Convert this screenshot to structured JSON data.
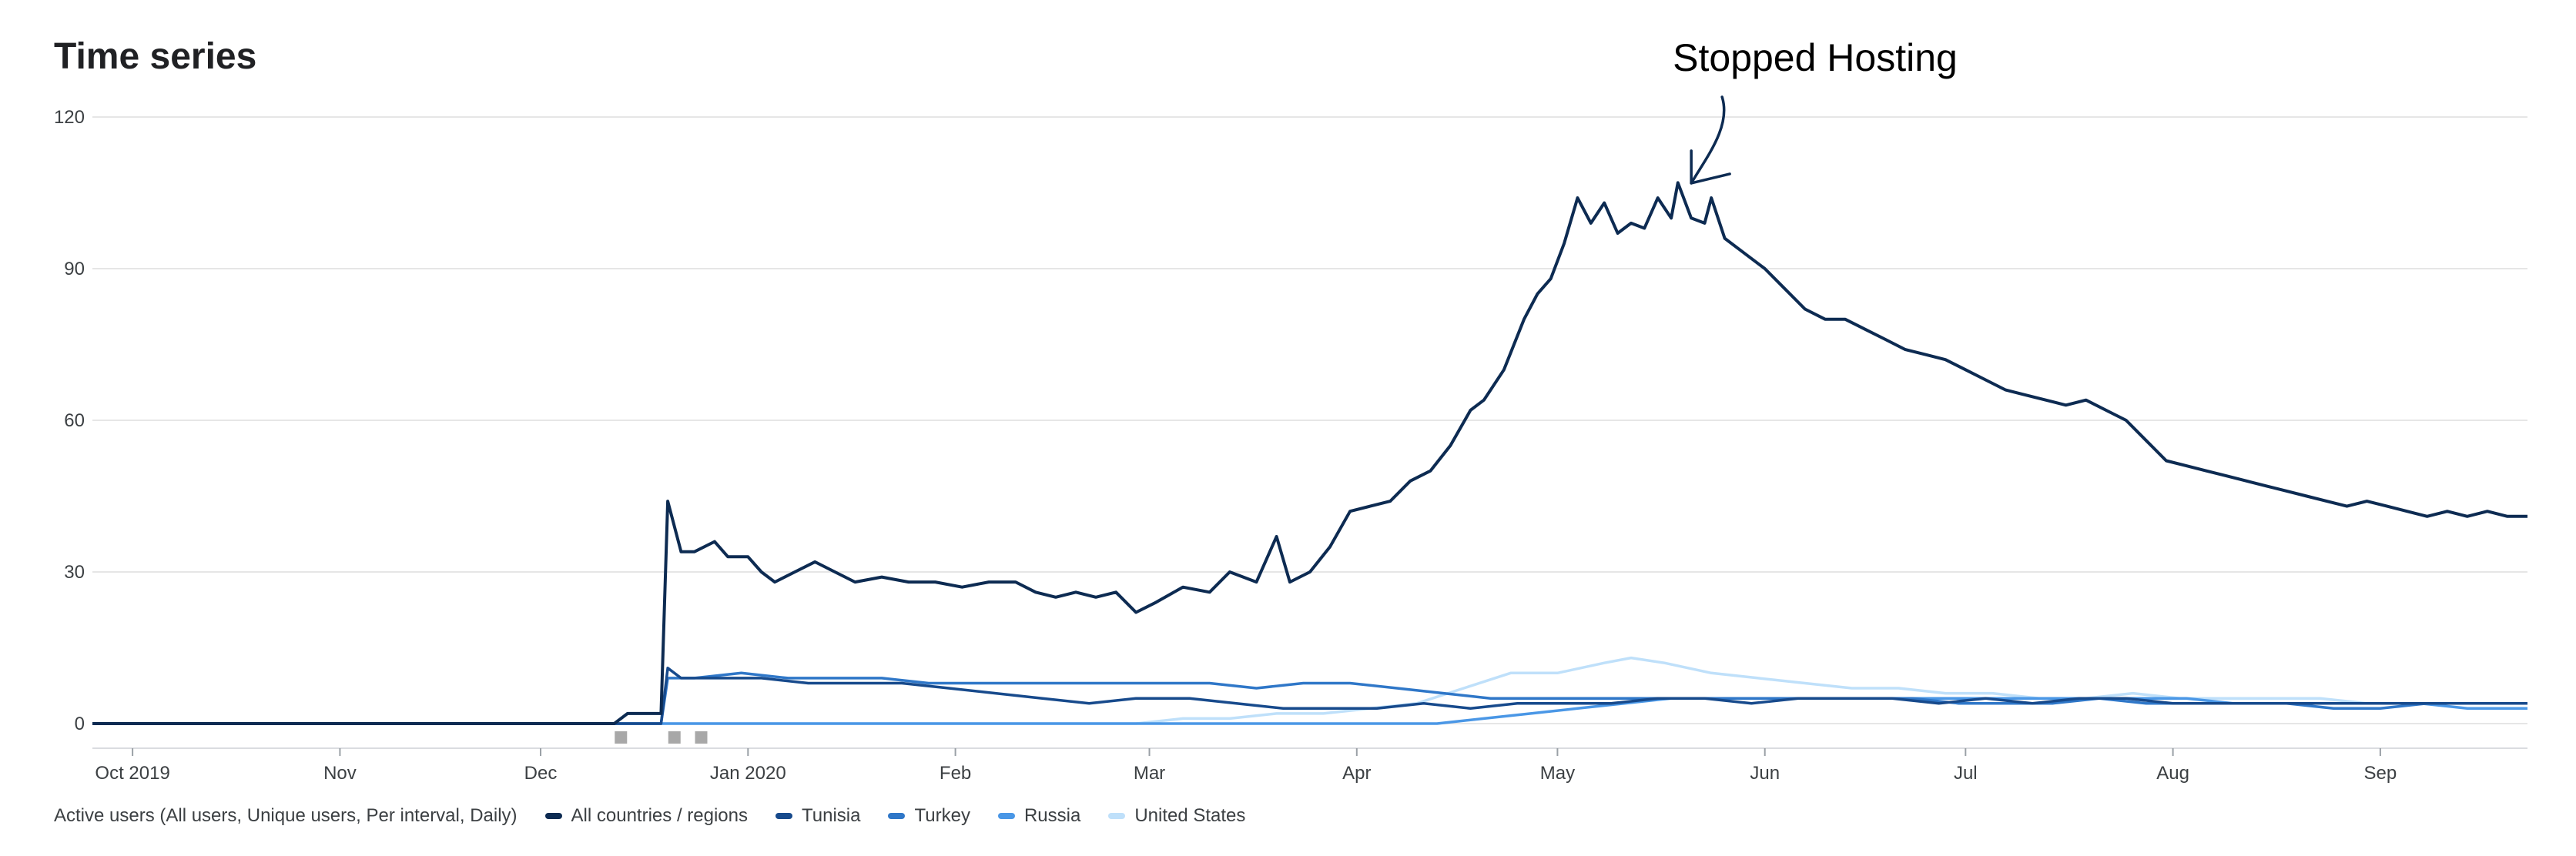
{
  "title": "Time series",
  "legend_prefix": "Active users (All users, Unique users, Per interval, Daily)",
  "chart_data": {
    "type": "line",
    "title": "Time series",
    "ylim": [
      0,
      120
    ],
    "yticks": [
      0,
      30,
      60,
      90,
      120
    ],
    "xlim": [
      "2019-09-25",
      "2020-09-23"
    ],
    "xticks": [
      {
        "label": "Oct 2019",
        "date": "2019-10-01"
      },
      {
        "label": "Nov",
        "date": "2019-11-01"
      },
      {
        "label": "Dec",
        "date": "2019-12-01"
      },
      {
        "label": "Jan 2020",
        "date": "2020-01-01"
      },
      {
        "label": "Feb",
        "date": "2020-02-01"
      },
      {
        "label": "Mar",
        "date": "2020-03-01"
      },
      {
        "label": "Apr",
        "date": "2020-04-01"
      },
      {
        "label": "May",
        "date": "2020-05-01"
      },
      {
        "label": "Jun",
        "date": "2020-06-01"
      },
      {
        "label": "Jul",
        "date": "2020-07-01"
      },
      {
        "label": "Aug",
        "date": "2020-08-01"
      },
      {
        "label": "Sep",
        "date": "2020-09-01"
      }
    ],
    "grid": true,
    "legend_position": "bottom",
    "annotation": {
      "text": "Stopped Hosting",
      "date": "2020-05-21",
      "value": 106
    },
    "series": [
      {
        "name": "All countries / regions",
        "color": "#0d2b52",
        "points": [
          [
            "2019-09-25",
            0
          ],
          [
            "2019-12-12",
            0
          ],
          [
            "2019-12-14",
            2
          ],
          [
            "2019-12-19",
            2
          ],
          [
            "2019-12-20",
            44
          ],
          [
            "2019-12-22",
            34
          ],
          [
            "2019-12-24",
            34
          ],
          [
            "2019-12-27",
            36
          ],
          [
            "2019-12-29",
            33
          ],
          [
            "2020-01-01",
            33
          ],
          [
            "2020-01-03",
            30
          ],
          [
            "2020-01-05",
            28
          ],
          [
            "2020-01-08",
            30
          ],
          [
            "2020-01-11",
            32
          ],
          [
            "2020-01-14",
            30
          ],
          [
            "2020-01-17",
            28
          ],
          [
            "2020-01-21",
            29
          ],
          [
            "2020-01-25",
            28
          ],
          [
            "2020-01-29",
            28
          ],
          [
            "2020-02-02",
            27
          ],
          [
            "2020-02-06",
            28
          ],
          [
            "2020-02-10",
            28
          ],
          [
            "2020-02-13",
            26
          ],
          [
            "2020-02-16",
            25
          ],
          [
            "2020-02-19",
            26
          ],
          [
            "2020-02-22",
            25
          ],
          [
            "2020-02-25",
            26
          ],
          [
            "2020-02-28",
            22
          ],
          [
            "2020-03-02",
            24
          ],
          [
            "2020-03-06",
            27
          ],
          [
            "2020-03-10",
            26
          ],
          [
            "2020-03-13",
            30
          ],
          [
            "2020-03-17",
            28
          ],
          [
            "2020-03-20",
            37
          ],
          [
            "2020-03-22",
            28
          ],
          [
            "2020-03-25",
            30
          ],
          [
            "2020-03-28",
            35
          ],
          [
            "2020-03-31",
            42
          ],
          [
            "2020-04-03",
            43
          ],
          [
            "2020-04-06",
            44
          ],
          [
            "2020-04-09",
            48
          ],
          [
            "2020-04-12",
            50
          ],
          [
            "2020-04-15",
            55
          ],
          [
            "2020-04-18",
            62
          ],
          [
            "2020-04-20",
            64
          ],
          [
            "2020-04-23",
            70
          ],
          [
            "2020-04-26",
            80
          ],
          [
            "2020-04-28",
            85
          ],
          [
            "2020-04-30",
            88
          ],
          [
            "2020-05-02",
            95
          ],
          [
            "2020-05-04",
            104
          ],
          [
            "2020-05-06",
            99
          ],
          [
            "2020-05-08",
            103
          ],
          [
            "2020-05-10",
            97
          ],
          [
            "2020-05-12",
            99
          ],
          [
            "2020-05-14",
            98
          ],
          [
            "2020-05-16",
            104
          ],
          [
            "2020-05-18",
            100
          ],
          [
            "2020-05-19",
            107
          ],
          [
            "2020-05-21",
            100
          ],
          [
            "2020-05-23",
            99
          ],
          [
            "2020-05-24",
            104
          ],
          [
            "2020-05-26",
            96
          ],
          [
            "2020-05-29",
            93
          ],
          [
            "2020-06-01",
            90
          ],
          [
            "2020-06-04",
            86
          ],
          [
            "2020-06-07",
            82
          ],
          [
            "2020-06-10",
            80
          ],
          [
            "2020-06-13",
            80
          ],
          [
            "2020-06-16",
            78
          ],
          [
            "2020-06-19",
            76
          ],
          [
            "2020-06-22",
            74
          ],
          [
            "2020-06-25",
            73
          ],
          [
            "2020-06-28",
            72
          ],
          [
            "2020-07-01",
            70
          ],
          [
            "2020-07-04",
            68
          ],
          [
            "2020-07-07",
            66
          ],
          [
            "2020-07-10",
            65
          ],
          [
            "2020-07-13",
            64
          ],
          [
            "2020-07-16",
            63
          ],
          [
            "2020-07-19",
            64
          ],
          [
            "2020-07-22",
            62
          ],
          [
            "2020-07-25",
            60
          ],
          [
            "2020-07-28",
            56
          ],
          [
            "2020-07-31",
            52
          ],
          [
            "2020-08-03",
            51
          ],
          [
            "2020-08-06",
            50
          ],
          [
            "2020-08-09",
            49
          ],
          [
            "2020-08-12",
            48
          ],
          [
            "2020-08-15",
            47
          ],
          [
            "2020-08-18",
            46
          ],
          [
            "2020-08-21",
            45
          ],
          [
            "2020-08-24",
            44
          ],
          [
            "2020-08-27",
            43
          ],
          [
            "2020-08-30",
            44
          ],
          [
            "2020-09-02",
            43
          ],
          [
            "2020-09-05",
            42
          ],
          [
            "2020-09-08",
            41
          ],
          [
            "2020-09-11",
            42
          ],
          [
            "2020-09-14",
            41
          ],
          [
            "2020-09-17",
            42
          ],
          [
            "2020-09-20",
            41
          ],
          [
            "2020-09-23",
            41
          ]
        ]
      },
      {
        "name": "Tunisia",
        "color": "#174a8c",
        "points": [
          [
            "2019-09-25",
            0
          ],
          [
            "2019-12-19",
            0
          ],
          [
            "2019-12-20",
            11
          ],
          [
            "2019-12-22",
            9
          ],
          [
            "2019-12-27",
            9
          ],
          [
            "2020-01-03",
            9
          ],
          [
            "2020-01-10",
            8
          ],
          [
            "2020-01-17",
            8
          ],
          [
            "2020-01-24",
            8
          ],
          [
            "2020-01-31",
            7
          ],
          [
            "2020-02-07",
            6
          ],
          [
            "2020-02-14",
            5
          ],
          [
            "2020-02-21",
            4
          ],
          [
            "2020-02-28",
            5
          ],
          [
            "2020-03-07",
            5
          ],
          [
            "2020-03-14",
            4
          ],
          [
            "2020-03-21",
            3
          ],
          [
            "2020-03-28",
            3
          ],
          [
            "2020-04-04",
            3
          ],
          [
            "2020-04-11",
            4
          ],
          [
            "2020-04-18",
            3
          ],
          [
            "2020-04-25",
            4
          ],
          [
            "2020-05-02",
            4
          ],
          [
            "2020-05-09",
            4
          ],
          [
            "2020-05-16",
            5
          ],
          [
            "2020-05-23",
            5
          ],
          [
            "2020-05-30",
            4
          ],
          [
            "2020-06-06",
            5
          ],
          [
            "2020-06-13",
            5
          ],
          [
            "2020-06-20",
            5
          ],
          [
            "2020-06-27",
            4
          ],
          [
            "2020-07-04",
            5
          ],
          [
            "2020-07-11",
            4
          ],
          [
            "2020-07-18",
            5
          ],
          [
            "2020-07-25",
            5
          ],
          [
            "2020-08-01",
            4
          ],
          [
            "2020-08-08",
            4
          ],
          [
            "2020-08-15",
            4
          ],
          [
            "2020-08-22",
            4
          ],
          [
            "2020-08-29",
            4
          ],
          [
            "2020-09-05",
            4
          ],
          [
            "2020-09-12",
            4
          ],
          [
            "2020-09-19",
            4
          ],
          [
            "2020-09-23",
            4
          ]
        ]
      },
      {
        "name": "Turkey",
        "color": "#2f77c8",
        "points": [
          [
            "2019-09-25",
            0
          ],
          [
            "2019-12-19",
            0
          ],
          [
            "2019-12-20",
            9
          ],
          [
            "2019-12-24",
            9
          ],
          [
            "2019-12-31",
            10
          ],
          [
            "2020-01-07",
            9
          ],
          [
            "2020-01-14",
            9
          ],
          [
            "2020-01-21",
            9
          ],
          [
            "2020-01-28",
            8
          ],
          [
            "2020-02-04",
            8
          ],
          [
            "2020-02-11",
            8
          ],
          [
            "2020-02-18",
            8
          ],
          [
            "2020-02-25",
            8
          ],
          [
            "2020-03-03",
            8
          ],
          [
            "2020-03-10",
            8
          ],
          [
            "2020-03-17",
            7
          ],
          [
            "2020-03-24",
            8
          ],
          [
            "2020-03-31",
            8
          ],
          [
            "2020-04-07",
            7
          ],
          [
            "2020-04-14",
            6
          ],
          [
            "2020-04-21",
            5
          ],
          [
            "2020-04-28",
            5
          ],
          [
            "2020-05-05",
            5
          ],
          [
            "2020-05-12",
            5
          ],
          [
            "2020-05-19",
            5
          ],
          [
            "2020-05-26",
            5
          ],
          [
            "2020-06-02",
            5
          ],
          [
            "2020-06-09",
            5
          ],
          [
            "2020-06-16",
            5
          ],
          [
            "2020-06-23",
            5
          ],
          [
            "2020-06-30",
            4
          ],
          [
            "2020-07-07",
            4
          ],
          [
            "2020-07-14",
            4
          ],
          [
            "2020-07-21",
            5
          ],
          [
            "2020-07-28",
            4
          ],
          [
            "2020-08-04",
            4
          ],
          [
            "2020-08-11",
            4
          ],
          [
            "2020-08-18",
            4
          ],
          [
            "2020-08-25",
            3
          ],
          [
            "2020-09-01",
            3
          ],
          [
            "2020-09-08",
            4
          ],
          [
            "2020-09-15",
            4
          ],
          [
            "2020-09-23",
            4
          ]
        ]
      },
      {
        "name": "Russia",
        "color": "#4a97e6",
        "points": [
          [
            "2019-09-25",
            0
          ],
          [
            "2020-04-13",
            0
          ],
          [
            "2020-04-20",
            1
          ],
          [
            "2020-04-27",
            2
          ],
          [
            "2020-05-04",
            3
          ],
          [
            "2020-05-11",
            4
          ],
          [
            "2020-05-18",
            5
          ],
          [
            "2020-05-25",
            5
          ],
          [
            "2020-06-01",
            5
          ],
          [
            "2020-06-08",
            5
          ],
          [
            "2020-06-15",
            5
          ],
          [
            "2020-06-22",
            5
          ],
          [
            "2020-06-29",
            5
          ],
          [
            "2020-07-06",
            5
          ],
          [
            "2020-07-13",
            5
          ],
          [
            "2020-07-20",
            5
          ],
          [
            "2020-07-27",
            5
          ],
          [
            "2020-08-03",
            5
          ],
          [
            "2020-08-10",
            4
          ],
          [
            "2020-08-17",
            4
          ],
          [
            "2020-08-24",
            4
          ],
          [
            "2020-08-31",
            4
          ],
          [
            "2020-09-07",
            4
          ],
          [
            "2020-09-14",
            3
          ],
          [
            "2020-09-23",
            3
          ]
        ]
      },
      {
        "name": "United States",
        "color": "#bfe0fa",
        "points": [
          [
            "2019-09-25",
            0
          ],
          [
            "2020-02-28",
            0
          ],
          [
            "2020-03-06",
            1
          ],
          [
            "2020-03-13",
            1
          ],
          [
            "2020-03-20",
            2
          ],
          [
            "2020-03-27",
            2
          ],
          [
            "2020-04-03",
            3
          ],
          [
            "2020-04-10",
            4
          ],
          [
            "2020-04-17",
            7
          ],
          [
            "2020-04-24",
            10
          ],
          [
            "2020-05-01",
            10
          ],
          [
            "2020-05-08",
            12
          ],
          [
            "2020-05-12",
            13
          ],
          [
            "2020-05-17",
            12
          ],
          [
            "2020-05-24",
            10
          ],
          [
            "2020-05-31",
            9
          ],
          [
            "2020-06-07",
            8
          ],
          [
            "2020-06-14",
            7
          ],
          [
            "2020-06-21",
            7
          ],
          [
            "2020-06-28",
            6
          ],
          [
            "2020-07-05",
            6
          ],
          [
            "2020-07-12",
            5
          ],
          [
            "2020-07-19",
            5
          ],
          [
            "2020-07-26",
            6
          ],
          [
            "2020-08-02",
            5
          ],
          [
            "2020-08-09",
            5
          ],
          [
            "2020-08-16",
            5
          ],
          [
            "2020-08-23",
            5
          ],
          [
            "2020-08-30",
            4
          ],
          [
            "2020-09-06",
            4
          ],
          [
            "2020-09-13",
            4
          ],
          [
            "2020-09-23",
            4
          ]
        ]
      }
    ]
  }
}
